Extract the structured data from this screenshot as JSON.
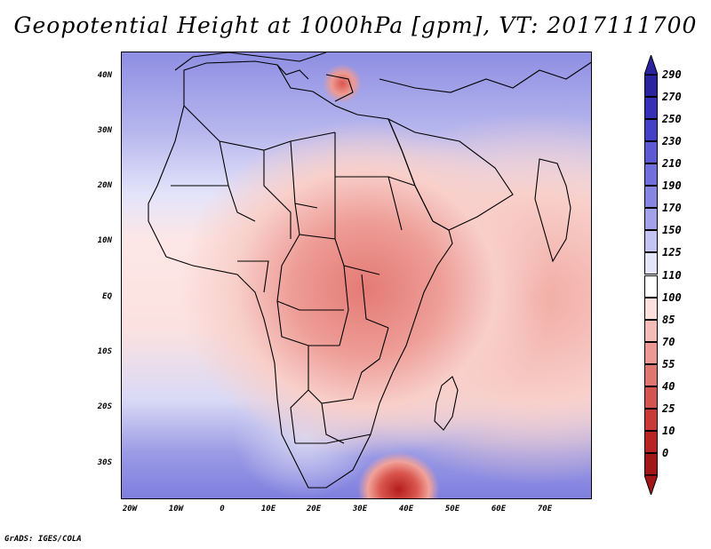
{
  "title": "Geopotential Height at 1000hPa [gpm], VT: 2017111700",
  "credit": "GrADS: IGES/COLA",
  "map": {
    "lat_labels": [
      "40N",
      "30N",
      "20N",
      "10N",
      "EQ",
      "10S",
      "20S",
      "30S"
    ],
    "lon_labels": [
      "20W",
      "10W",
      "0",
      "10E",
      "20E",
      "30E",
      "40E",
      "50E",
      "60E",
      "70E"
    ],
    "lat_values": [
      40,
      30,
      20,
      10,
      0,
      -10,
      -20,
      -30
    ],
    "lon_values": [
      -20,
      -10,
      0,
      10,
      20,
      30,
      40,
      50,
      60,
      70
    ],
    "lat_range": [
      -36.5,
      45
    ],
    "lon_range": [
      -22,
      80
    ]
  },
  "colorbar": {
    "labels": [
      "290",
      "270",
      "250",
      "230",
      "210",
      "190",
      "170",
      "150",
      "125",
      "110",
      "100",
      "85",
      "70",
      "55",
      "40",
      "25",
      "10",
      "0"
    ],
    "colors": [
      "#29239e",
      "#3530b5",
      "#4541c6",
      "#5c59d3",
      "#716fdb",
      "#8785e2",
      "#a2a1e9",
      "#c4c4f2",
      "#e5e5fa",
      "#ffffff",
      "#fbe0de",
      "#f5bcb7",
      "#ec9993",
      "#e07670",
      "#d4554f",
      "#c93a36",
      "#b82323",
      "#a11717"
    ]
  }
}
